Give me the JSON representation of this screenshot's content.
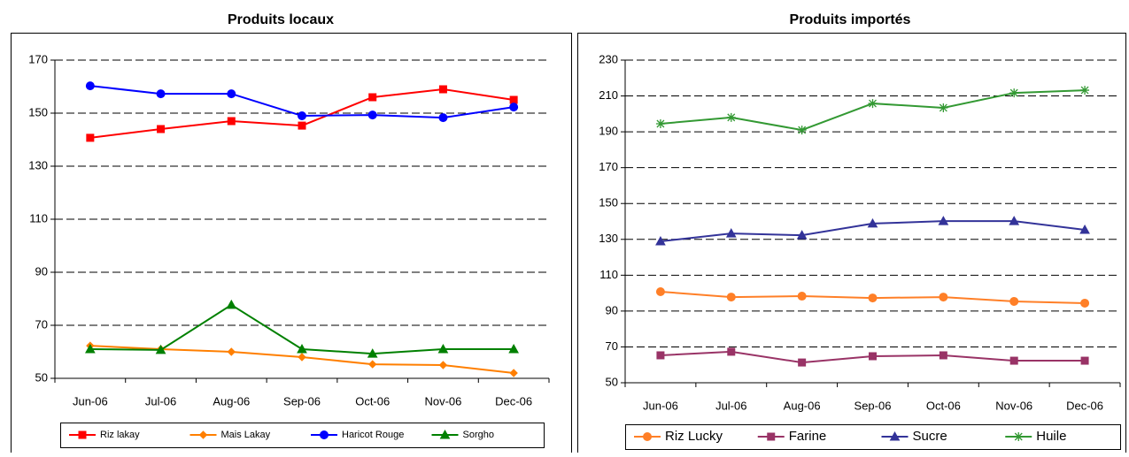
{
  "chart_data": [
    {
      "type": "line",
      "title": "Produits locaux",
      "categories": [
        "Jun-06",
        "Jul-06",
        "Aug-06",
        "Sep-06",
        "Oct-06",
        "Nov-06",
        "Dec-06"
      ],
      "ylim": [
        50,
        170
      ],
      "yticks": [
        50,
        70,
        90,
        110,
        130,
        150,
        170
      ],
      "grid": true,
      "legend": "bottom",
      "series": [
        {
          "name": "Riz lakay",
          "color": "#ff0000",
          "marker": "square",
          "values": [
            140.7,
            144,
            147,
            145.3,
            156,
            159,
            155
          ]
        },
        {
          "name": "Mais Lakay",
          "color": "#ff7f00",
          "marker": "diamond",
          "values": [
            62.3,
            61,
            60,
            58,
            55.3,
            55,
            52
          ]
        },
        {
          "name": "Haricot Rouge",
          "color": "#0000ff",
          "marker": "circle",
          "values": [
            160.3,
            157.3,
            157.3,
            149,
            149.3,
            148.3,
            152.3
          ]
        },
        {
          "name": "Sorgho",
          "color": "#008000",
          "marker": "triangle",
          "values": [
            61,
            60.7,
            77.7,
            61,
            59.3,
            61,
            61
          ]
        }
      ]
    },
    {
      "type": "line",
      "title": "Produits importés",
      "categories": [
        "Jun-06",
        "Jul-06",
        "Aug-06",
        "Sep-06",
        "Oct-06",
        "Nov-06",
        "Dec-06"
      ],
      "ylim": [
        50,
        230
      ],
      "yticks": [
        50,
        70,
        90,
        110,
        130,
        150,
        170,
        190,
        210,
        230
      ],
      "grid": true,
      "legend": "bottom",
      "series": [
        {
          "name": "Riz Lucky",
          "color": "#ff7f27",
          "marker": "circle",
          "values": [
            100.8,
            97.8,
            98.3,
            97.3,
            97.8,
            95.4,
            94.4
          ]
        },
        {
          "name": "Farine",
          "color": "#993366",
          "marker": "square",
          "values": [
            65.3,
            67.3,
            61.3,
            64.8,
            65.3,
            62.3,
            62.3
          ]
        },
        {
          "name": "Sucre",
          "color": "#333399",
          "marker": "triangle",
          "values": [
            128.9,
            133.3,
            132.3,
            138.8,
            140.2,
            140.2,
            135.3
          ]
        },
        {
          "name": "Huile",
          "color": "#339933",
          "marker": "star",
          "values": [
            194.5,
            198,
            191,
            205.8,
            203.4,
            211.7,
            213.2
          ]
        }
      ]
    }
  ]
}
